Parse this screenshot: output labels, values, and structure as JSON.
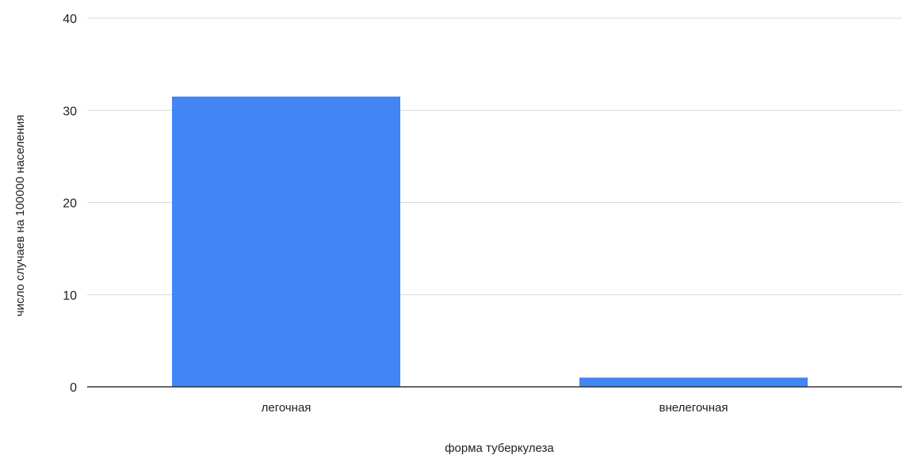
{
  "chart_data": {
    "type": "bar",
    "categories": [
      "легочная",
      "внелегочная"
    ],
    "values": [
      31.5,
      1.0
    ],
    "xlabel": "форма туберкулеза",
    "ylabel": "число случаев на 100000 населения",
    "ylim": [
      0,
      40
    ],
    "yticks": [
      0,
      10,
      20,
      30,
      40
    ],
    "grid": true,
    "legend": "none",
    "bar_color": "#4285f4",
    "grid_color": "#d9d9d9",
    "axis_color": "#333333"
  }
}
